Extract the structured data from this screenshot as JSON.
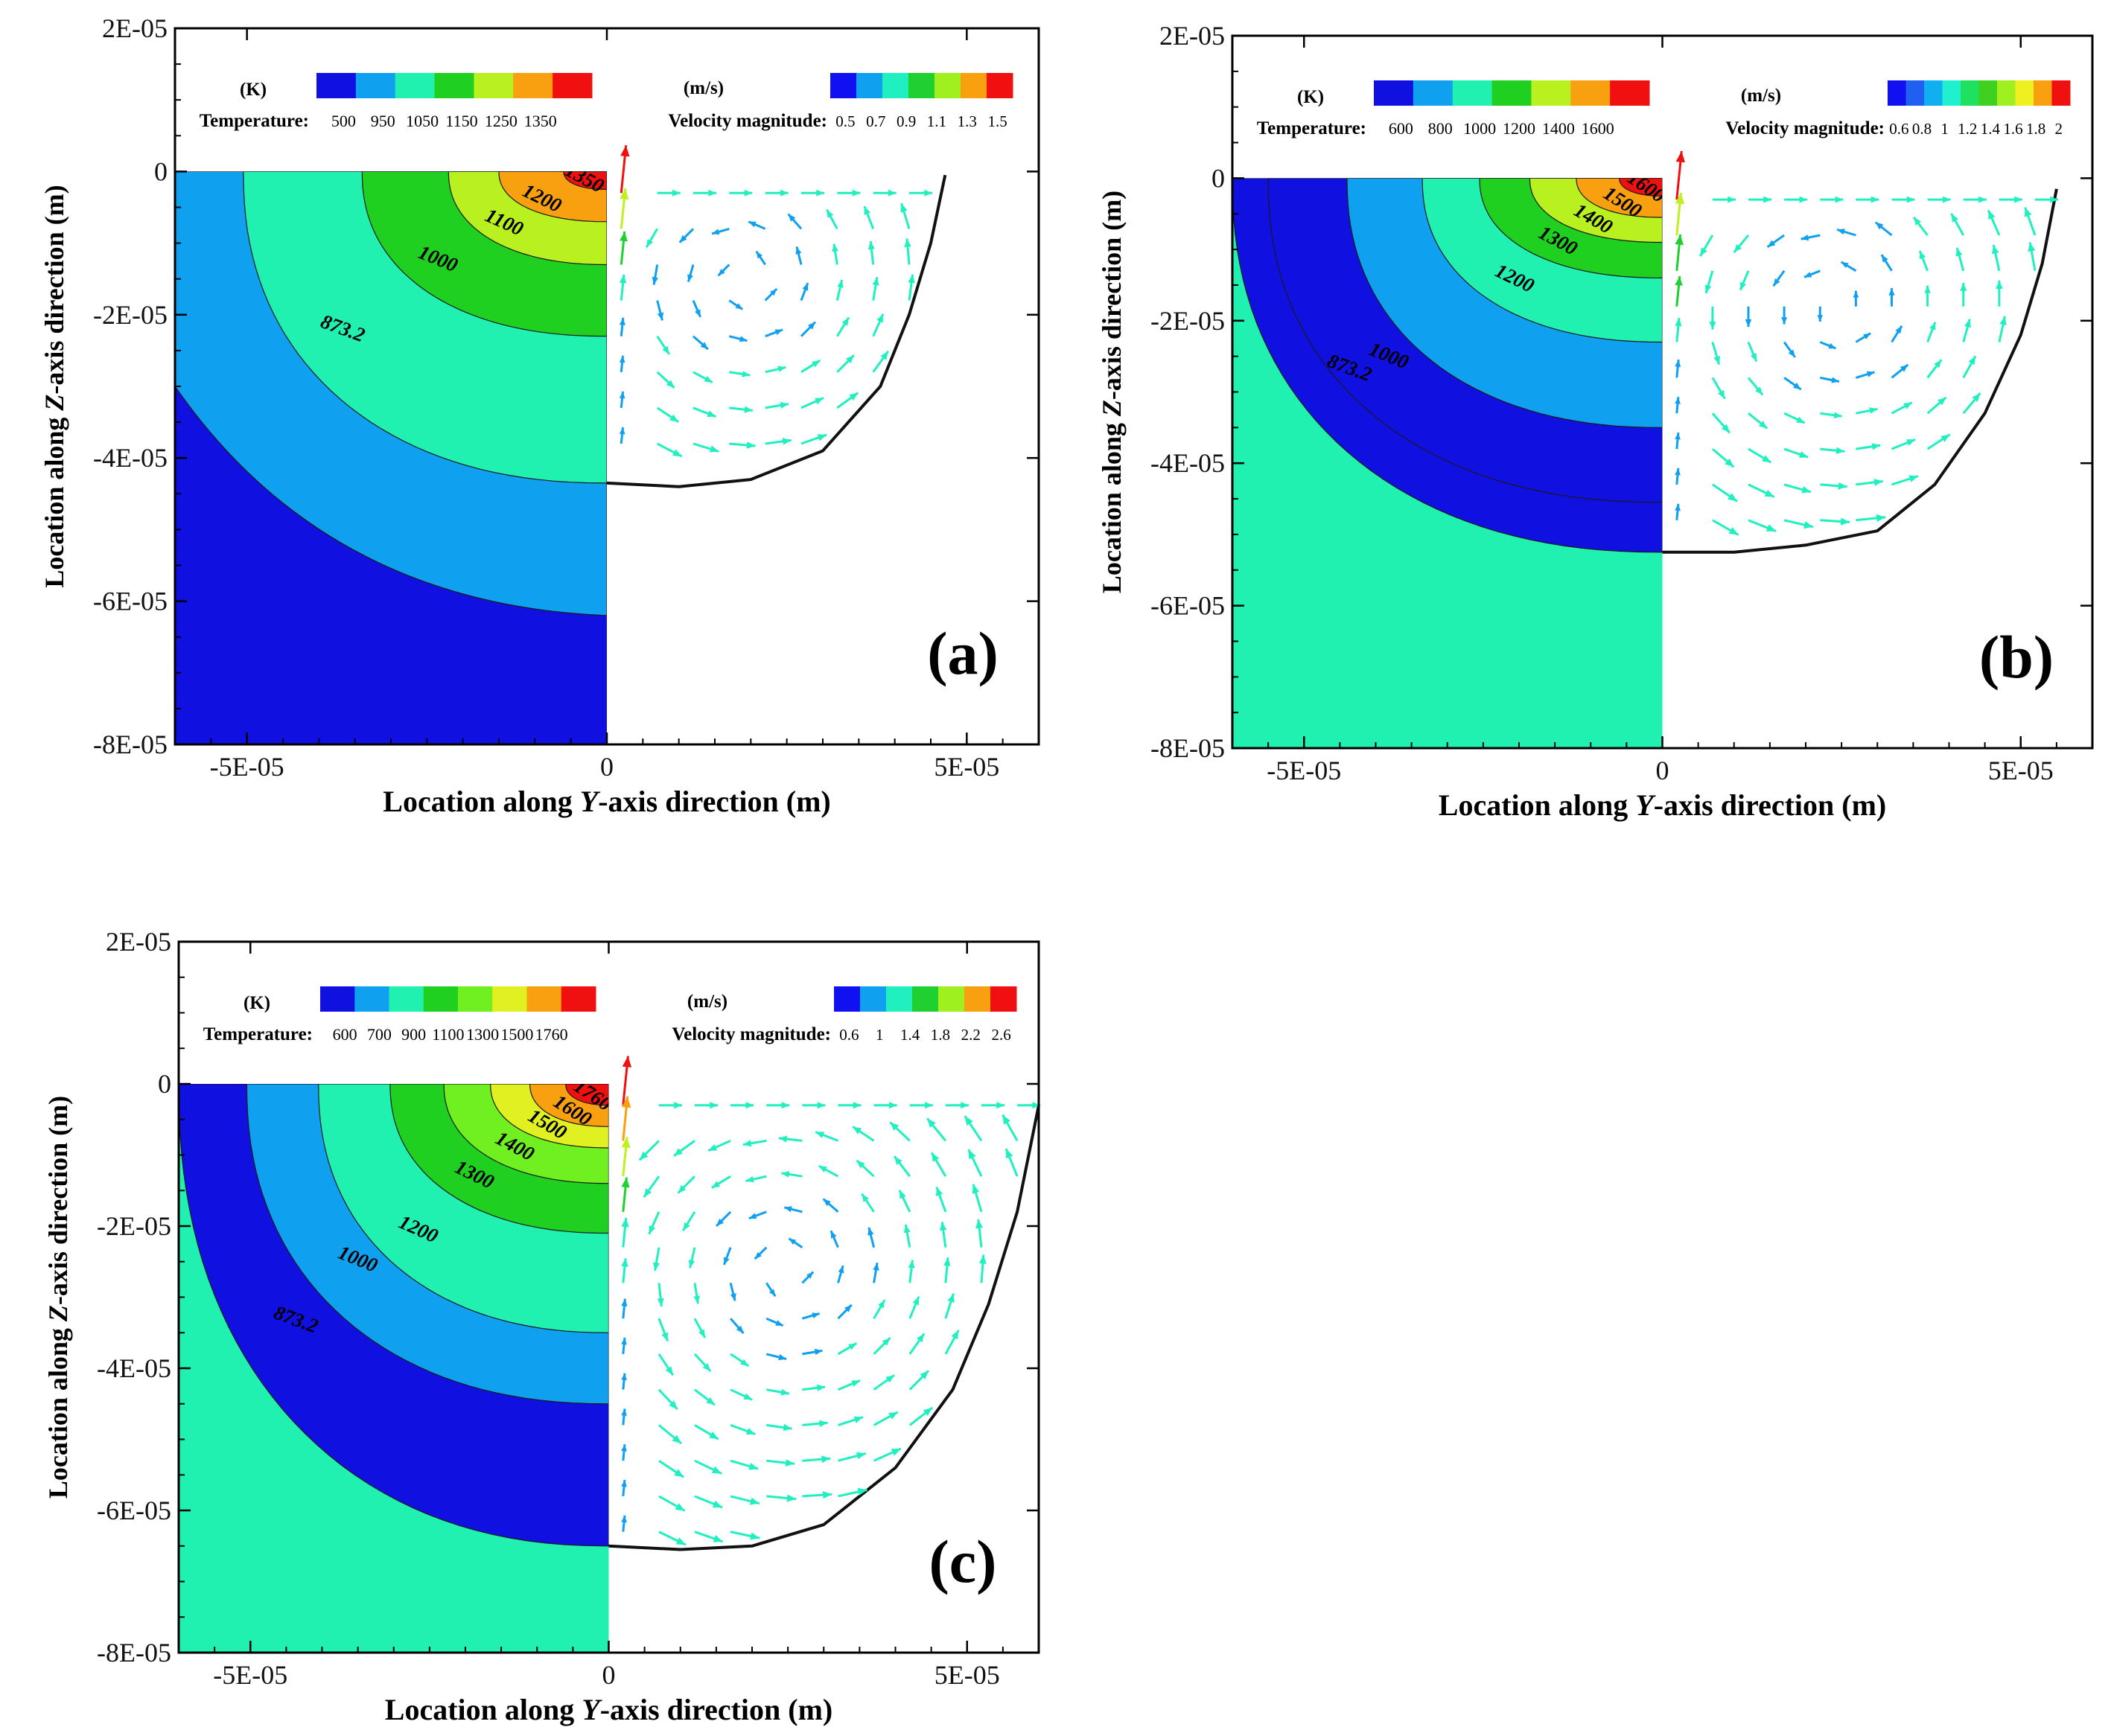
{
  "chart_data": [
    {
      "type": "contour",
      "panel_label": "(a)",
      "xlabel_prefix": "Location along ",
      "xlabel_var": "Y",
      "xlabel_suffix": "-axis direction (m)",
      "ylabel_prefix": "Location along ",
      "ylabel_var": "Z",
      "ylabel_suffix": "-axis direction (m)",
      "xlim": [
        -6e-05,
        6e-05
      ],
      "ylim": [
        -8e-05,
        2e-05
      ],
      "xticks": [
        -5e-05,
        0,
        5e-05
      ],
      "xtick_labels": [
        "-5E-05",
        "0",
        "5E-05"
      ],
      "yticks": [
        2e-05,
        0,
        -2e-05,
        -4e-05,
        -6e-05,
        -8e-05
      ],
      "ytick_labels": [
        "2E-05",
        "0",
        "-2E-05",
        "-4E-05",
        "-6E-05",
        "-8E-05"
      ],
      "temperature_legend": {
        "unit": "(K)",
        "title": "Temperature:",
        "levels": [
          "500",
          "950",
          "1050",
          "1150",
          "1250",
          "1350"
        ],
        "colors": [
          "#1010e0",
          "#10a0f0",
          "#20f0b0",
          "#20d020",
          "#b8f020",
          "#f8a010",
          "#f01010"
        ]
      },
      "velocity_legend": {
        "unit": "(m/s)",
        "title": "Velocity  magnitude:",
        "levels": [
          "0.5",
          "0.7",
          "0.9",
          "1.1",
          "1.3",
          "1.5"
        ],
        "colors": [
          "#1010f0",
          "#10a0f0",
          "#20f0c0",
          "#20d030",
          "#a0f020",
          "#f8a010",
          "#f01010"
        ]
      },
      "temperature_contours": [
        {
          "level": 873.2,
          "label": "873.2",
          "depth_at_axis": -4.35e-05,
          "extent_at_surface": -5.05e-05
        },
        {
          "level": 1000,
          "label": "1000",
          "depth_at_axis": -2.3e-05,
          "extent_at_surface": -3.4e-05
        },
        {
          "level": 1100,
          "label": "1100",
          "depth_at_axis": -1.3e-05,
          "extent_at_surface": -2.2e-05
        },
        {
          "level": 1200,
          "label": "1200",
          "depth_at_axis": -7e-06,
          "extent_at_surface": -1.5e-05
        },
        {
          "level": 1350,
          "label": "1350",
          "depth_at_axis": -2.5e-06,
          "extent_at_surface": -6e-06
        }
      ],
      "cold_region_boundary": {
        "depth_at_axis": -6.2e-05,
        "depth_at_left_edge": -3e-05
      },
      "background_color": "#1010e0",
      "melt_pool_boundary": [
        [
          0,
          -4.35e-05
        ],
        [
          1e-05,
          -4.4e-05
        ],
        [
          2e-05,
          -4.3e-05
        ],
        [
          3e-05,
          -3.9e-05
        ],
        [
          3.8e-05,
          -3e-05
        ],
        [
          4.2e-05,
          -2e-05
        ],
        [
          4.5e-05,
          -1e-05
        ],
        [
          4.7e-05,
          -5e-07
        ]
      ],
      "vortex_center": [
        1.9e-05,
        -1.5e-05
      ],
      "max_velocity": 1.5
    },
    {
      "type": "contour",
      "panel_label": "(b)",
      "xlabel_prefix": "Location along ",
      "xlabel_var": "Y",
      "xlabel_suffix": "-axis direction (m)",
      "ylabel_prefix": "Location along ",
      "ylabel_var": "Z",
      "ylabel_suffix": "-axis direction (m)",
      "xlim": [
        -6e-05,
        6e-05
      ],
      "ylim": [
        -8e-05,
        2e-05
      ],
      "xticks": [
        -5e-05,
        0,
        5e-05
      ],
      "xtick_labels": [
        "-5E-05",
        "0",
        "5E-05"
      ],
      "yticks": [
        2e-05,
        0,
        -2e-05,
        -4e-05,
        -6e-05,
        -8e-05
      ],
      "ytick_labels": [
        "2E-05",
        "0",
        "-2E-05",
        "-4E-05",
        "-6E-05",
        "-8E-05"
      ],
      "temperature_legend": {
        "unit": "(K)",
        "title": "Temperature:",
        "levels": [
          "600",
          "800",
          "1000",
          "1200",
          "1400",
          "1600"
        ],
        "colors": [
          "#1010e0",
          "#10a0f0",
          "#20f0b0",
          "#20d020",
          "#b8f020",
          "#f8a010",
          "#f01010"
        ]
      },
      "velocity_legend": {
        "unit": "(m/s)",
        "title": "Velocity  magnitude:",
        "levels": [
          "0.6",
          "0.8",
          "1",
          "1.2",
          "1.4",
          "1.6",
          "1.8",
          "2"
        ],
        "colors": [
          "#1010f0",
          "#2060f0",
          "#10b0f0",
          "#20f0d0",
          "#20e060",
          "#40d020",
          "#a0f020",
          "#f0f020",
          "#f8a010",
          "#f01010"
        ]
      },
      "temperature_contours": [
        {
          "level": 873.2,
          "label": "873.2",
          "depth_at_axis": -5.25e-05,
          "extent_at_surface": -6e-05
        },
        {
          "level": 1000,
          "label": "1000",
          "depth_at_axis": -4.55e-05,
          "extent_at_surface": -5.5e-05
        },
        {
          "level": 1100,
          "label": "",
          "depth_at_axis": -3.5e-05,
          "extent_at_surface": -4.4e-05
        },
        {
          "level": 1200,
          "label": "1200",
          "depth_at_axis": -2.3e-05,
          "extent_at_surface": -3.35e-05
        },
        {
          "level": 1300,
          "label": "1300",
          "depth_at_axis": -1.4e-05,
          "extent_at_surface": -2.55e-05
        },
        {
          "level": 1400,
          "label": "1400",
          "depth_at_axis": -9e-06,
          "extent_at_surface": -1.85e-05
        },
        {
          "level": 1500,
          "label": "1500",
          "depth_at_axis": -5.5e-06,
          "extent_at_surface": -1.2e-05
        },
        {
          "level": 1600,
          "label": "1600",
          "depth_at_axis": -2.5e-06,
          "extent_at_surface": -6e-06
        }
      ],
      "background_color": "#20f0b0",
      "melt_pool_boundary": [
        [
          0,
          -5.25e-05
        ],
        [
          1e-05,
          -5.25e-05
        ],
        [
          2e-05,
          -5.15e-05
        ],
        [
          3e-05,
          -4.95e-05
        ],
        [
          3.8e-05,
          -4.3e-05
        ],
        [
          4.5e-05,
          -3.3e-05
        ],
        [
          5e-05,
          -2.2e-05
        ],
        [
          5.3e-05,
          -1.2e-05
        ],
        [
          5.5e-05,
          -1.5e-06
        ]
      ],
      "vortex_center": [
        2.4e-05,
        -1.8e-05
      ],
      "max_velocity": 2
    },
    {
      "type": "contour",
      "panel_label": "(c)",
      "xlabel_prefix": "Location along ",
      "xlabel_var": "Y",
      "xlabel_suffix": "-axis direction (m)",
      "ylabel_prefix": "Location along ",
      "ylabel_var": "Z",
      "ylabel_suffix": "-axis direction (m)",
      "xlim": [
        -6e-05,
        6e-05
      ],
      "ylim": [
        -8e-05,
        2e-05
      ],
      "xticks": [
        -5e-05,
        0,
        5e-05
      ],
      "xtick_labels": [
        "-5E-05",
        "0",
        "5E-05"
      ],
      "yticks": [
        2e-05,
        0,
        -2e-05,
        -4e-05,
        -6e-05,
        -8e-05
      ],
      "ytick_labels": [
        "2E-05",
        "0",
        "-2E-05",
        "-4E-05",
        "-6E-05",
        "-8E-05"
      ],
      "temperature_legend": {
        "unit": "(K)",
        "title": "Temperature:",
        "levels": [
          "600",
          "700",
          "900",
          "1100",
          "1300",
          "1500",
          "1760"
        ],
        "colors": [
          "#1010e0",
          "#10a0f0",
          "#20f0b0",
          "#20d020",
          "#70f020",
          "#e0f020",
          "#f8a010",
          "#f01010"
        ]
      },
      "velocity_legend": {
        "unit": "(m/s)",
        "title": "Velocity  magnitude:",
        "levels": [
          "0.6",
          "1",
          "1.4",
          "1.8",
          "2.2",
          "2.6"
        ],
        "colors": [
          "#1010f0",
          "#10a0f0",
          "#20f0c0",
          "#20d030",
          "#a0f020",
          "#f8a010",
          "#f01010"
        ]
      },
      "temperature_contours": [
        {
          "level": 873.2,
          "label": "873.2",
          "depth_at_axis": -6.5e-05,
          "extent_at_surface": -6e-05
        },
        {
          "level": 1000,
          "label": "1000",
          "depth_at_axis": -4.5e-05,
          "extent_at_surface": -5.05e-05
        },
        {
          "level": 1200,
          "label": "1200",
          "depth_at_axis": -3.5e-05,
          "extent_at_surface": -4.05e-05
        },
        {
          "level": 1300,
          "label": "1300",
          "depth_at_axis": -2.1e-05,
          "extent_at_surface": -3.05e-05
        },
        {
          "level": 1400,
          "label": "1400",
          "depth_at_axis": -1.4e-05,
          "extent_at_surface": -2.3e-05
        },
        {
          "level": 1500,
          "label": "1500",
          "depth_at_axis": -9e-06,
          "extent_at_surface": -1.65e-05
        },
        {
          "level": 1600,
          "label": "1600",
          "depth_at_axis": -6e-06,
          "extent_at_surface": -1.1e-05
        },
        {
          "level": 1760,
          "label": "1760",
          "depth_at_axis": -3e-06,
          "extent_at_surface": -6e-06
        }
      ],
      "background_color": "#20f0b0",
      "melt_pool_boundary": [
        [
          0,
          -6.5e-05
        ],
        [
          1e-05,
          -6.55e-05
        ],
        [
          2e-05,
          -6.5e-05
        ],
        [
          3e-05,
          -6.2e-05
        ],
        [
          4e-05,
          -5.4e-05
        ],
        [
          4.8e-05,
          -4.3e-05
        ],
        [
          5.3e-05,
          -3.1e-05
        ],
        [
          5.7e-05,
          -1.8e-05
        ],
        [
          6e-05,
          -3e-06
        ]
      ],
      "vortex_center": [
        2.5e-05,
        -2.6e-05
      ],
      "max_velocity": 2.6
    }
  ]
}
